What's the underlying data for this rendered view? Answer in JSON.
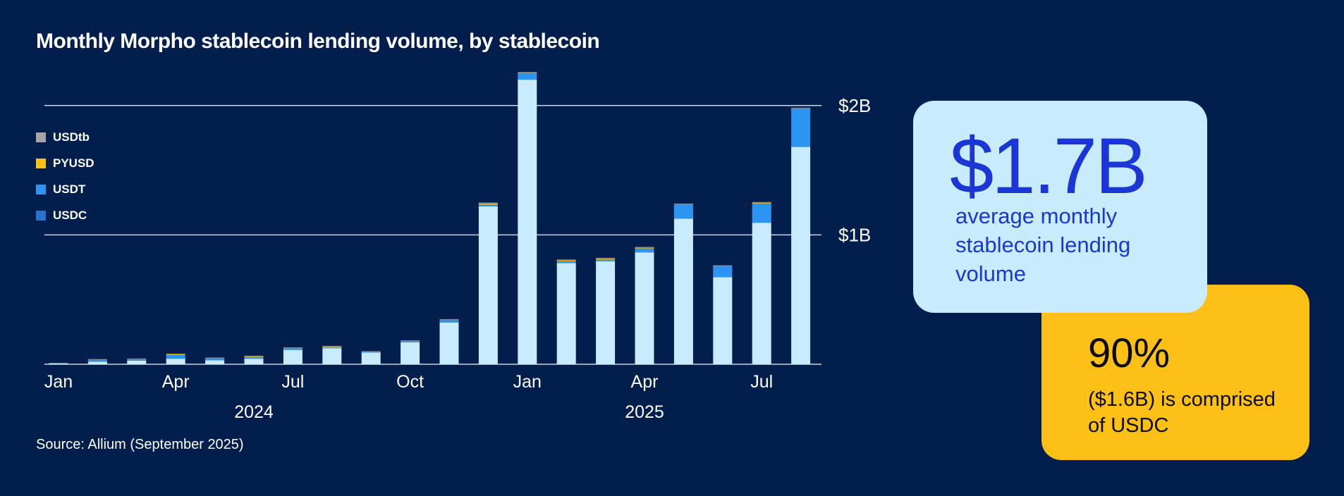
{
  "chart_data": {
    "type": "bar",
    "stacked": true,
    "title": "Monthly Morpho stablecoin lending volume, by stablecoin",
    "source": "Source: Allium (September 2025)",
    "categories": [
      "Jan 2024",
      "Feb 2024",
      "Mar 2024",
      "Apr 2024",
      "May 2024",
      "Jun 2024",
      "Jul 2024",
      "Aug 2024",
      "Sep 2024",
      "Oct 2024",
      "Nov 2024",
      "Dec 2024",
      "Jan 2025",
      "Feb 2025",
      "Mar 2025",
      "Apr 2025",
      "May 2025",
      "Jun 2025",
      "Jul 2025",
      "Aug 2025"
    ],
    "x_tick_labels": [
      {
        "label": "Jan",
        "index": 0
      },
      {
        "label": "Apr",
        "index": 3
      },
      {
        "label": "Jul",
        "index": 6
      },
      {
        "label": "Oct",
        "index": 9
      },
      {
        "label": "Jan",
        "index": 12
      },
      {
        "label": "Apr",
        "index": 15
      },
      {
        "label": "Jul",
        "index": 18
      }
    ],
    "year_labels": [
      {
        "label": "2024",
        "center_index": 5
      },
      {
        "label": "2025",
        "center_index": 15
      }
    ],
    "y_unit": "USD billions",
    "ylim": [
      0,
      2.3
    ],
    "y_ticks": [
      {
        "value": 1,
        "label": "$1B"
      },
      {
        "value": 2,
        "label": "$2B"
      }
    ],
    "grid": true,
    "legend_position": "top-left",
    "series": [
      {
        "name": "USDC",
        "color": "#2a72d0",
        "bar_color": "#c8ecfd",
        "values": [
          0.008,
          0.019,
          0.028,
          0.043,
          0.03,
          0.043,
          0.111,
          0.124,
          0.09,
          0.169,
          0.323,
          1.22,
          2.2,
          0.782,
          0.797,
          0.865,
          1.126,
          0.673,
          1.094,
          1.68
        ]
      },
      {
        "name": "USDT",
        "color": "#2c95f4",
        "bar_color": "#2c95f4",
        "values": [
          0.0,
          0.013,
          0.008,
          0.03,
          0.014,
          0.01,
          0.012,
          0.004,
          0.003,
          0.008,
          0.018,
          0.012,
          0.048,
          0.012,
          0.01,
          0.03,
          0.108,
          0.084,
          0.148,
          0.295
        ]
      },
      {
        "name": "PYUSD",
        "color": "#fbbf16",
        "bar_color": "#f0b416",
        "values": [
          0.0,
          0.0,
          0.0,
          0.004,
          0.0,
          0.005,
          0.0,
          0.006,
          0.0,
          0.0,
          0.0,
          0.01,
          0.003,
          0.008,
          0.008,
          0.004,
          0.0,
          0.0,
          0.004,
          0.0
        ]
      },
      {
        "name": "USDtb",
        "color": "#a6a6a6",
        "bar_color": "#8c8c8c",
        "values": [
          0.0,
          0.002,
          0.002,
          0.0,
          0.003,
          0.002,
          0.003,
          0.003,
          0.001,
          0.002,
          0.003,
          0.006,
          0.004,
          0.004,
          0.005,
          0.002,
          0.005,
          0.002,
          0.002,
          0.005
        ]
      }
    ]
  },
  "callout_primary": {
    "value": "$1.7B",
    "text": "average monthly stablecoin lending volume",
    "bg": "#c8ecfd",
    "fg": "#1a36d4"
  },
  "callout_secondary": {
    "value": "90%",
    "line1": "($1.6B) is comprised",
    "line2": "of USDC",
    "bg": "#fbbf16"
  },
  "colors": {
    "background": "#021e4d",
    "gridline": "#c9d3e3"
  }
}
